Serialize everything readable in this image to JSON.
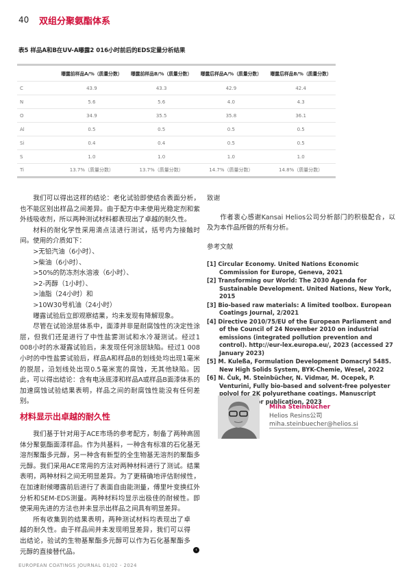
{
  "header": {
    "page_number": "40",
    "running_title": "双组分聚氨酯体系"
  },
  "table": {
    "caption": "表5 样品A和B在UV-A曝露2 016小时前后的EDS定量分析结果",
    "columns": [
      "",
      "曝露前样品A/%（质量分数）",
      "曝露前样品B/%（质量分数）",
      "曝露后样品A/%（质量分数）",
      "曝露后样品B/%（质量分数）"
    ],
    "rows": [
      [
        "C",
        "43.9",
        "43.3",
        "42.9",
        "42.4"
      ],
      [
        "N",
        "5.6",
        "5.6",
        "4.0",
        "4.3"
      ],
      [
        "O",
        "34.9",
        "35.5",
        "35.8",
        "36.1"
      ],
      [
        "Al",
        "0.5",
        "0.5",
        "0.5",
        "0.5"
      ],
      [
        "Si",
        "0.4",
        "0.4",
        "0.5",
        "0.5"
      ],
      [
        "S",
        "1.0",
        "1.0",
        "1.0",
        "1.0"
      ],
      [
        "Ti",
        "13.7%（质量分数）",
        "13.7%（质量分数）",
        "14.7%（质量分数）",
        "14.8%（质量分数）"
      ]
    ]
  },
  "left": {
    "p1": "我们可以得出这样的结论：老化试验即使结合表面分析，也不能区别出样品之间差异。由于配方中未使用光稳定剂和紫外线吸收剂，所以两种测试材料都表现出了卓越的耐久性。",
    "p2": "材料的耐化学性采用滴点法进行测试，括号内为接触时间。使用的介质如下：",
    "bullets": [
      ">无铅汽油（6小时）、",
      ">柴油（6小时）、",
      ">50%的防冻剂水溶液（6小时）、",
      ">2-丙醇（1小时）、",
      ">油脂（24小时）和",
      ">10W30号机油（24小时）"
    ],
    "p3": "曝露试验后立即观察结果，均未发现有降解现象。",
    "p4": "尽管在试验涂层体系中，面漆并非是耐腐蚀性的决定性涂层，但我们还是进行了中性盐雾测试和水冷凝测试。经过1 008小时的水凝露试验后，未发现任何涂层缺陷。经过1 008小时的中性盐雾试验后，样品A和样品B的划线处均出现1毫米的脱层，沿划线处出现0.5毫米宽的腐蚀，无其他缺陷。因此，可以得出结论：含有电泳底漆和样品A或样品B面漆体系的加速腐蚀试验结果表明，样品之间的耐腐蚀性能没有任何差别。",
    "section_title": "材料显示出卓越的耐久性",
    "p5": "我们基于针对用于ACE市场的参考配方，制备了两种高固体分聚氨酯面漆样品。作为共基料，一种含有标准的石化基无溶剂聚酯多元醇，另一种含有新型的全生物基无溶剂的聚酯多元醇。我们采用ACE常用的方法对两种材料进行了测试。结果表明，两种材料之间无明显差异。为了更精确地评估耐候性，在加速耐候曝露前后进行了表面自由能测量，傅里叶变换红外分析和SEM-EDS测量。两种材料均显示出极佳的耐候性。即使采用先进的方法也并未显示出样品之间具有明显差异。",
    "p6": "所有收集到的结果表明，两种测试材料均表现出了卓越的耐久性。由于样品间并未发现明显差异，我们可以得出结论，验试的生物基聚酯多元醇可以作为石化基聚酯多元醇的直接替代品。",
    "back_icon": "‹"
  },
  "right": {
    "ack_title": "致谢",
    "ack_text": "作者衷心感谢Kansai Helios公司分析部门的积极配合，以及为本作品所做的所有分析。",
    "refs_title": "参考文献",
    "refs": [
      "[1] Circular Economy. United Nations Economic Commission for Europe, Geneva, 2021",
      "[2] Transforming our World: The 2030 Agenda for Sustainable Development. United Nations, New York, 2015",
      "[3] Bio-based raw materials: A limited toolbox. European Coatings Journal, 2/2021",
      "[4] Directive 2010/75/EU of the European Parliament and of the Council of 24 November 2010 on industrial emissions (integrated pollution prevention and control). http://eur-lex.europa.eu/, 2023 (accessed 27 January 2023)",
      "[5] M. Kuleßa, Formulation Development Domacryl 5485. New High Solids System, BYK-Chemie, Wesel, 2022",
      "[6] N. Čuk, M. Steinbücher, N. Vidmar, M. Ocepek, P. Venturini, Fully bio-based and solvent-free polyester polyol for 2K polyurethane coatings. Manuscript submitted for publication, 2023"
    ]
  },
  "author": {
    "name": "Miha Steinbücher",
    "company": "Helios Resins公司",
    "email": "miha.steinbuecher@helios.si"
  },
  "footer": {
    "journal": "EUROPEAN COATINGS JOURNAL 01/02 - 2024"
  },
  "colors": {
    "accent": "#d0103a",
    "author_name": "#c8175a"
  }
}
